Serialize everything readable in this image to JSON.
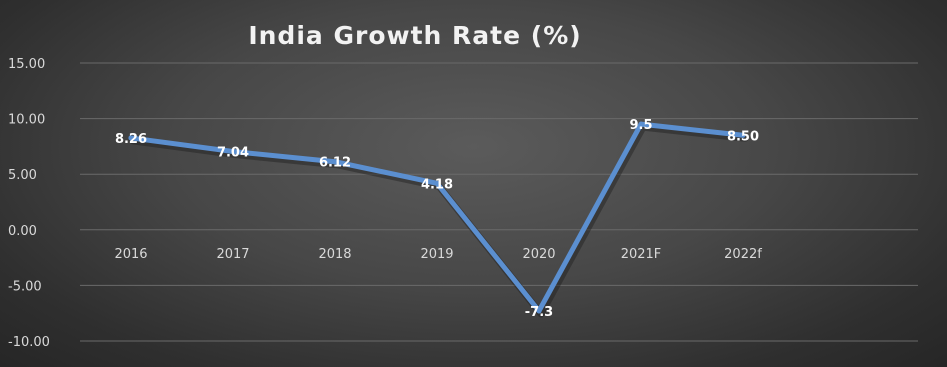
{
  "chart_data": {
    "type": "line",
    "title": "India Growth Rate (%)",
    "categories": [
      "2016",
      "2017",
      "2018",
      "2019",
      "2020",
      "2021F",
      "2022f"
    ],
    "series": [
      {
        "values": [
          8.26,
          7.04,
          6.12,
          4.18,
          -7.3,
          9.5,
          8.5
        ],
        "labels": [
          "8.26",
          "7.04",
          "6.12",
          "4.18",
          "-7.3",
          "9.5",
          "8.50"
        ]
      }
    ],
    "yticks": [
      "15.00",
      "10.00",
      "5.00",
      "0.00",
      "-5.00",
      "-10.00"
    ],
    "ylim": [
      -10,
      15
    ],
    "grid": true,
    "legend": "none",
    "colors": {
      "line": "#5b8fd0",
      "background": "#3c3c3c",
      "grid": "#6a6a6a",
      "text": "#d9d9d9"
    }
  }
}
